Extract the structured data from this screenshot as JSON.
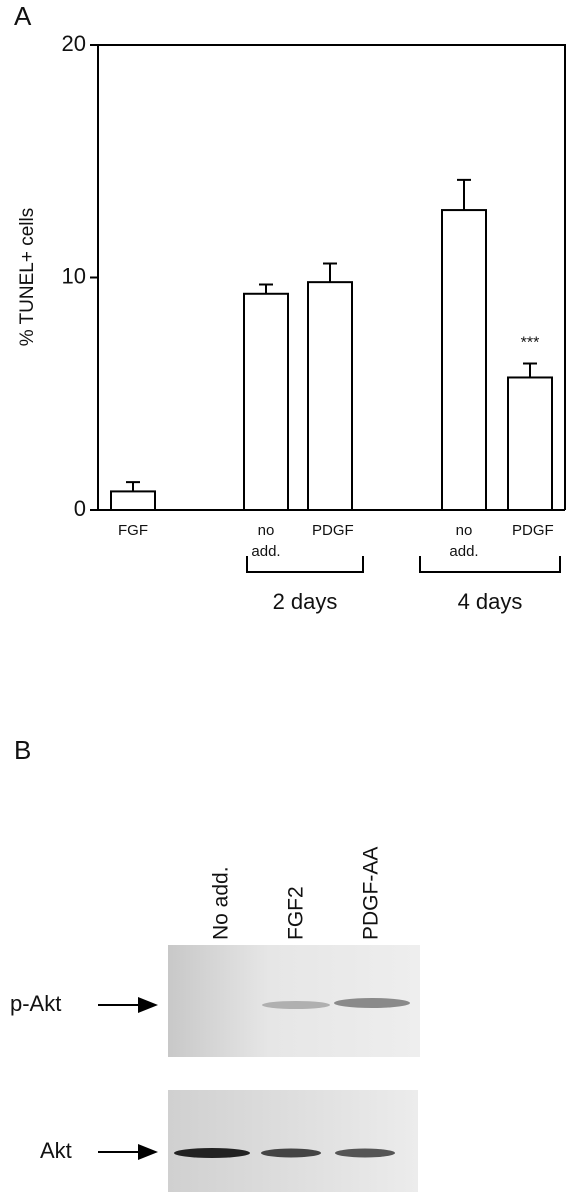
{
  "panel_a_label": "A",
  "chart_data": {
    "type": "bar",
    "y_label": "% TUNEL+ cells",
    "categories": [
      "FGF",
      "no add.",
      "PDGF",
      "no add.",
      "PDGF"
    ],
    "values": [
      0.8,
      9.3,
      9.8,
      12.9,
      5.7
    ],
    "errors": [
      0.4,
      0.4,
      0.8,
      1.3,
      0.6
    ],
    "color": "#ffffff",
    "ylim": [
      0,
      20
    ],
    "yticks": [
      0,
      10,
      20
    ],
    "group_labels": [
      "2 days",
      "4 days"
    ],
    "annotation": "***"
  },
  "panel_b_label": "B",
  "blot": {
    "lanes": [
      "No add.",
      "FGF2",
      "PDGF-AA"
    ],
    "rows": [
      "p-Akt",
      "Akt"
    ]
  }
}
